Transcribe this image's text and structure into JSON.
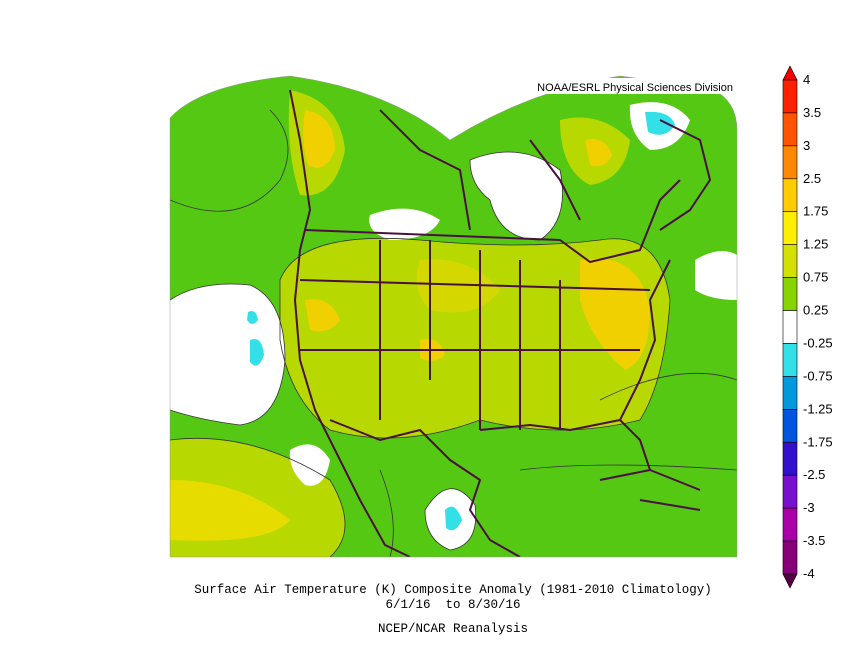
{
  "header": {
    "credit": "NOAA/ESRL Physical Sciences Division"
  },
  "caption": {
    "title": "Surface Air Temperature (K) Composite Anomaly (1981-2010 Climatology)",
    "dates": "6/1/16  to 8/30/16",
    "source": "NCEP/NCAR Reanalysis"
  },
  "colorbar": {
    "ticks": [
      4,
      3.5,
      3,
      2.5,
      1.75,
      1.25,
      0.75,
      0.25,
      -0.25,
      -0.75,
      -1.25,
      -1.75,
      -2.5,
      -3,
      -3.5,
      -4
    ],
    "colors": [
      "#ee0000",
      "#ff2200",
      "#ff5500",
      "#ff8800",
      "#ffcc00",
      "#ffee00",
      "#d4e000",
      "#88d400",
      "#ffffff",
      "#33e0e8",
      "#0099dd",
      "#0055dd",
      "#3311cc",
      "#7711cc",
      "#aa00aa",
      "#880077",
      "#550044"
    ]
  }
}
